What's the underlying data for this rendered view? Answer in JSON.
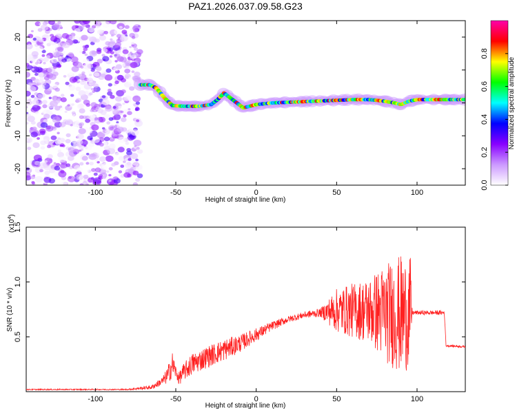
{
  "title": "PAZ1.2026.037.09.58.G23",
  "chart_data": [
    {
      "type": "heatmap",
      "name": "spectrogram",
      "xlabel": "Height of straight line (km)",
      "ylabel": "Frequency (Hz)",
      "xlim": [
        -143,
        130
      ],
      "ylim": [
        -25,
        25
      ],
      "xticks": [
        -100,
        -50,
        0,
        50,
        100
      ],
      "yticks": [
        -20,
        -10,
        0,
        10,
        20
      ],
      "noise_region_x": [
        -143,
        -72
      ],
      "tone_track": {
        "x": [
          -72,
          -66,
          -62,
          -57,
          -52,
          -45,
          -35,
          -28,
          -24,
          -20,
          -16,
          -12,
          -8,
          -4,
          0,
          10,
          20,
          30,
          40,
          50,
          60,
          70,
          75,
          80,
          86,
          90,
          95,
          100,
          110,
          120,
          130
        ],
        "freq": [
          5.5,
          5.5,
          4.5,
          1.5,
          -0.8,
          -1.0,
          -1.0,
          -0.5,
          1.0,
          3.0,
          1.5,
          0.0,
          -1.5,
          -1.0,
          -0.5,
          0.0,
          0.2,
          0.4,
          0.6,
          0.8,
          1.0,
          1.0,
          0.8,
          0.5,
          0.0,
          -0.5,
          0.5,
          1.0,
          1.0,
          1.0,
          1.0
        ]
      },
      "colorbar": {
        "label": "Normalized spectral amplitude",
        "range": [
          0,
          1
        ],
        "ticks": [
          "0.0",
          "0.2",
          "0.4",
          "0.6",
          "0.8"
        ],
        "colors": [
          "#ffffff",
          "#cc99ff",
          "#8800ff",
          "#0000ff",
          "#00ffff",
          "#00ff00",
          "#ffff00",
          "#ff0000",
          "#ff00aa"
        ]
      }
    },
    {
      "type": "line",
      "name": "snr",
      "xlabel": "Height of straight line (km)",
      "ylabel": "SNR (10 * v/v)",
      "multiplier_label": "(x10",
      "multiplier_exp": "4",
      "xlim": [
        -143,
        130
      ],
      "ylim": [
        0,
        1.5
      ],
      "xticks": [
        -100,
        -50,
        0,
        50,
        100
      ],
      "yticks": [
        0.5,
        1.0,
        1.5
      ],
      "ytick_labels": [
        "0.5",
        "1.0",
        "1.5"
      ],
      "color": "#ff2020",
      "envelope": {
        "x": [
          -143,
          -80,
          -65,
          -58,
          -55,
          -52,
          -50,
          -48,
          -45,
          -40,
          -30,
          -20,
          -10,
          0,
          10,
          20,
          30,
          40,
          50,
          60,
          70,
          80,
          90,
          96,
          97,
          110,
          117,
          118,
          130
        ],
        "mean": [
          0.02,
          0.02,
          0.04,
          0.1,
          0.15,
          0.25,
          0.18,
          0.12,
          0.18,
          0.25,
          0.32,
          0.38,
          0.44,
          0.52,
          0.6,
          0.66,
          0.7,
          0.72,
          0.74,
          0.74,
          0.74,
          0.72,
          0.7,
          0.72,
          0.72,
          0.72,
          0.72,
          0.42,
          0.41
        ],
        "amp": [
          0.005,
          0.005,
          0.02,
          0.04,
          0.08,
          0.12,
          0.06,
          0.06,
          0.08,
          0.1,
          0.1,
          0.1,
          0.08,
          0.06,
          0.04,
          0.03,
          0.03,
          0.04,
          0.2,
          0.25,
          0.3,
          0.45,
          0.55,
          0.5,
          0.02,
          0.02,
          0.02,
          0.01,
          0.01
        ]
      }
    }
  ]
}
